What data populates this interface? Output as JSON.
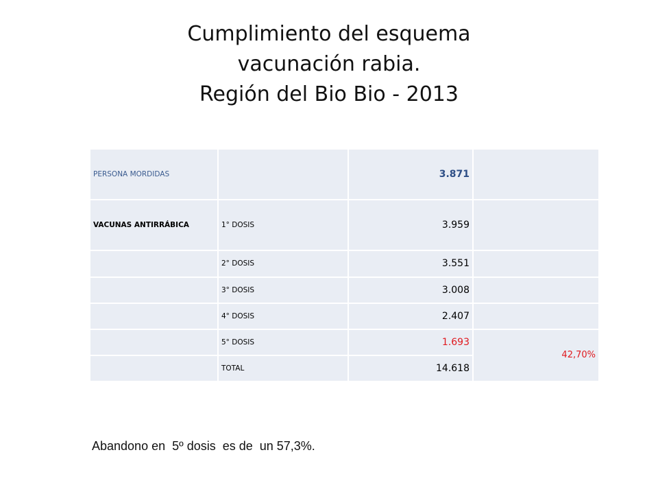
{
  "title": {
    "line1": "Cumplimiento del esquema",
    "line2": "vacunación rabia.",
    "line3": "Región del Bio Bio - 2013"
  },
  "table": {
    "row1": {
      "label": "PERSONA MORDIDAS",
      "value": "3.871"
    },
    "row2": {
      "label": "VACUNAS ANTIRRÁBICA",
      "dose": "1° DOSIS",
      "value": "3.959"
    },
    "row3": {
      "dose": "2° DOSIS",
      "value": "3.551"
    },
    "row4": {
      "dose": "3° DOSIS",
      "value": "3.008"
    },
    "row5": {
      "dose": "4° DOSIS",
      "value": "2.407"
    },
    "row6": {
      "dose": "5° DOSIS",
      "value": "1.693"
    },
    "row7": {
      "dose": "TOTAL",
      "value": "14.618"
    },
    "percentage": "42,70%"
  },
  "note": "Abandono en  5º dosis  es de  un 57,3%.",
  "colors": {
    "accent_red": "#e0191e",
    "label_blue": "#3a5b8f",
    "cell_bg": "#e9edf4"
  }
}
